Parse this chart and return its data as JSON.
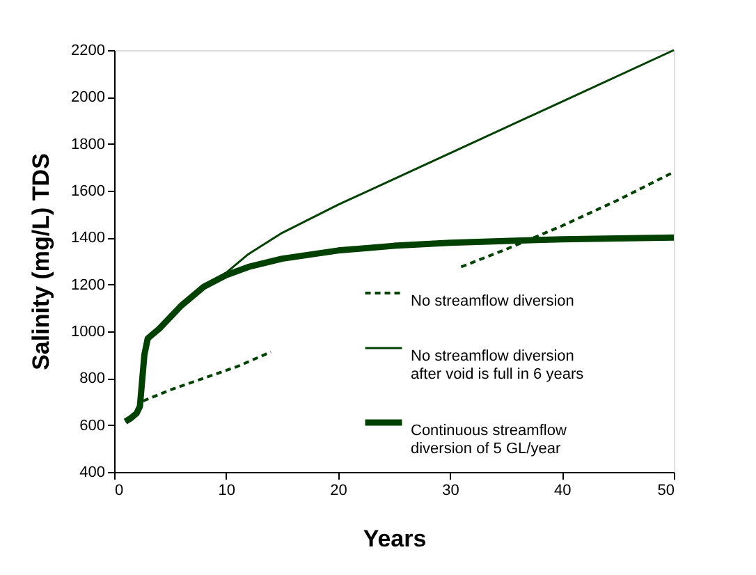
{
  "chart_data": {
    "type": "line",
    "xlabel": "Years",
    "ylabel": "Salinity (mg/L) TDS",
    "xlim": [
      0,
      50
    ],
    "xticks": [
      0,
      10,
      20,
      30,
      40,
      50
    ],
    "ylim": [
      400,
      2200
    ],
    "yticks": [
      400,
      600,
      800,
      1000,
      1200,
      1400,
      1600,
      1800,
      2000,
      2200
    ],
    "grid": false,
    "legend": "bottom right",
    "series": [
      {
        "name": "No streamflow diversion",
        "color": "#004000",
        "line_style": "dashed",
        "x": [
          2.6,
          5,
          8,
          11,
          14,
          20,
          31,
          35,
          40,
          45,
          50
        ],
        "values": [
          703,
          750,
          800,
          850,
          912,
          null,
          1275,
          1350,
          1450,
          1560,
          1680
        ]
      },
      {
        "name": "No streamflow diversion\nafter void is full in 6 years",
        "color": "#004000",
        "line_style": "solid",
        "x": [
          1,
          1.5,
          2,
          2.3,
          2.7,
          3,
          4,
          6,
          8,
          10,
          12,
          15,
          20,
          30,
          40,
          50
        ],
        "values": [
          615,
          630,
          650,
          680,
          900,
          970,
          1010,
          1110,
          1190,
          1250,
          1330,
          1420,
          1540,
          1760,
          1980,
          2200
        ]
      },
      {
        "name": "Continuous streamflow\ndiversion of 5 GL/year",
        "color": "#004000",
        "line_style": "solid",
        "x": [
          1,
          1.5,
          2,
          2.3,
          2.7,
          3,
          4,
          6,
          8,
          10,
          12,
          15,
          20,
          25,
          30,
          40,
          50
        ],
        "values": [
          615,
          630,
          650,
          680,
          900,
          970,
          1010,
          1110,
          1190,
          1240,
          1275,
          1310,
          1345,
          1365,
          1378,
          1393,
          1400
        ]
      }
    ]
  }
}
